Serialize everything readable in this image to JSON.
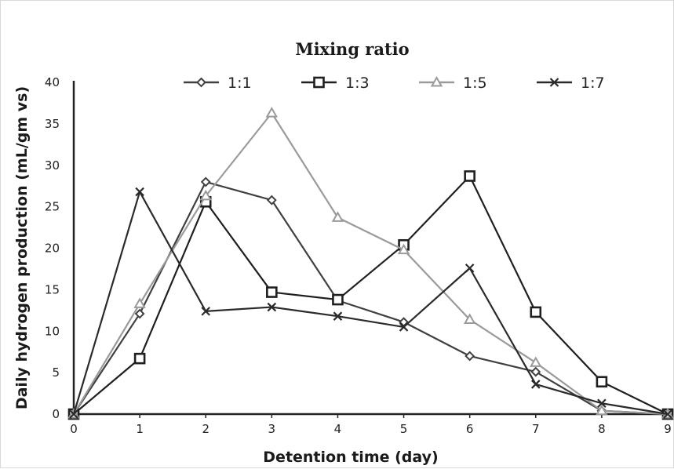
{
  "chart_data": {
    "type": "line",
    "title": "Mixing ratio",
    "xlabel": "Detention time (day)",
    "ylabel": "Daily hydrogen production (mL/gm vs)",
    "xlim": [
      0,
      9
    ],
    "ylim": [
      0,
      40
    ],
    "x_ticks": [
      "0",
      "1",
      "2",
      "3",
      "4",
      "5",
      "6",
      "7",
      "8",
      "9"
    ],
    "y_ticks": [
      "0",
      "5",
      "10",
      "15",
      "20",
      "25",
      "30",
      "35",
      "40"
    ],
    "grid": false,
    "legend_position": "top",
    "x": [
      0,
      1,
      2,
      3,
      4,
      5,
      6,
      7,
      8,
      9
    ],
    "series": [
      {
        "name": "1:1",
        "marker": "diamond",
        "color": "#404040",
        "values": [
          0,
          12.1,
          28.0,
          25.8,
          13.7,
          11.1,
          7.0,
          5.1,
          0.4,
          0
        ]
      },
      {
        "name": "1:3",
        "marker": "square",
        "color": "#1f1f1f",
        "values": [
          0,
          6.7,
          25.6,
          14.7,
          13.8,
          20.4,
          28.7,
          12.3,
          3.9,
          0
        ]
      },
      {
        "name": "1:5",
        "marker": "triangle",
        "color": "#9a9a9a",
        "values": [
          0,
          13.3,
          26.3,
          36.3,
          23.7,
          19.8,
          11.4,
          6.2,
          0.4,
          0
        ]
      },
      {
        "name": "1:7",
        "marker": "x",
        "color": "#2a2a2a",
        "values": [
          0,
          26.8,
          12.4,
          12.9,
          11.8,
          10.5,
          17.6,
          3.6,
          1.3,
          0
        ]
      }
    ]
  }
}
